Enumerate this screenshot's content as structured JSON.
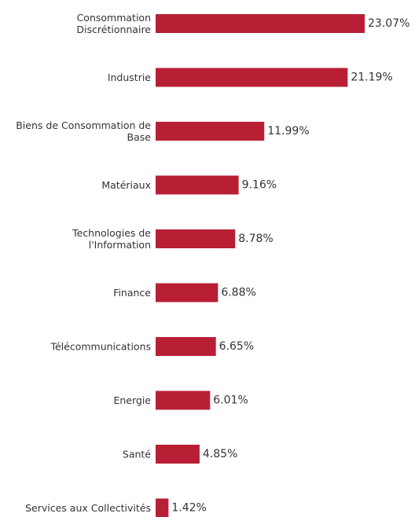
{
  "chart_data": {
    "type": "bar",
    "orientation": "horizontal",
    "title": "",
    "xlabel": "",
    "ylabel": "",
    "categories": [
      [
        "Consommation",
        "Discrétionnaire"
      ],
      [
        "Industrie"
      ],
      [
        "Biens de Consommation de",
        "Base"
      ],
      [
        "Matériaux"
      ],
      [
        "Technologies de",
        "l'Information"
      ],
      [
        "Finance"
      ],
      [
        "Télécommunications"
      ],
      [
        "Energie"
      ],
      [
        "Santé"
      ],
      [
        "Services aux Collectivités"
      ]
    ],
    "values": [
      23.07,
      21.19,
      11.99,
      9.16,
      8.78,
      6.88,
      6.65,
      6.01,
      4.85,
      1.42
    ],
    "value_labels": [
      "23.07%",
      "21.19%",
      "11.99%",
      "9.16%",
      "8.78%",
      "6.88%",
      "6.65%",
      "6.01%",
      "4.85%",
      "1.42%"
    ],
    "bar_color": "#b81f35",
    "grid": false,
    "legend": "none",
    "xlim": [
      0,
      23.07
    ]
  }
}
